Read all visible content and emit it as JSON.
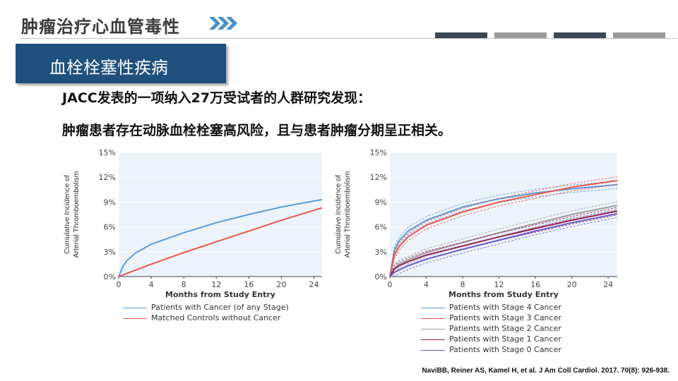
{
  "header": {
    "title": "肿瘤治疗心血管毒性",
    "bar_colors": [
      "#3d4756",
      "#9a9a9a",
      "#3d4756",
      "#9a9a9a"
    ]
  },
  "section": {
    "title": "血栓栓塞性疾病"
  },
  "body": {
    "line1": "JACC发表的一项纳入27万受试者的人群研究发现：",
    "line2": "肿瘤患者存在动脉血栓栓塞高风险，且与患者肿瘤分期呈正相关。"
  },
  "chart_data": [
    {
      "type": "line",
      "xlabel": "Months from Study Entry",
      "ylabel_lines": [
        "Cumulative Incidence of",
        "Arterial Thromboembolism"
      ],
      "xticks": [
        "0",
        "4",
        "8",
        "12",
        "16",
        "20",
        "24"
      ],
      "yticks": [
        "0%",
        "3%",
        "6%",
        "9%",
        "12%",
        "15%"
      ],
      "xlim": [
        0,
        25
      ],
      "ylim": [
        0,
        15
      ],
      "series": [
        {
          "name": "Patients with Cancer (of any Stage)",
          "color": "#5b9bd5",
          "x": [
            0,
            0.5,
            1,
            2,
            4,
            8,
            12,
            16,
            20,
            25
          ],
          "y": [
            0,
            1.2,
            1.9,
            2.8,
            3.9,
            5.3,
            6.5,
            7.5,
            8.4,
            9.3
          ]
        },
        {
          "name": "Matched Controls without Cancer",
          "color": "#e8584a",
          "x": [
            0,
            4,
            8,
            12,
            16,
            20,
            25
          ],
          "y": [
            0,
            1.5,
            2.9,
            4.2,
            5.5,
            6.8,
            8.3
          ]
        }
      ]
    },
    {
      "type": "line",
      "xlabel": "Months from Study Entry",
      "ylabel_lines": [
        "Cumulative Incidence of",
        "Arterial Thromboembolism"
      ],
      "xticks": [
        "0",
        "4",
        "8",
        "12",
        "16",
        "20",
        "24"
      ],
      "yticks": [
        "0%",
        "3%",
        "6%",
        "9%",
        "12%",
        "15%"
      ],
      "xlim": [
        0,
        25
      ],
      "ylim": [
        0,
        15
      ],
      "series": [
        {
          "name": "Patients with Stage 4 Cancer",
          "color": "#5b9bd5",
          "x": [
            0,
            0.5,
            1,
            2,
            4,
            8,
            12,
            16,
            20,
            25
          ],
          "y": [
            0,
            3.2,
            4.3,
            5.5,
            6.8,
            8.4,
            9.4,
            10.1,
            10.6,
            11.1
          ]
        },
        {
          "name": "Patients with Stage 3 Cancer",
          "color": "#e8584a",
          "x": [
            0,
            0.5,
            1,
            2,
            4,
            8,
            12,
            16,
            20,
            25
          ],
          "y": [
            0,
            2.6,
            3.6,
            4.8,
            6.2,
            7.8,
            9.0,
            9.9,
            10.8,
            11.6
          ]
        },
        {
          "name": "Patients with Stage 2 Cancer",
          "color": "#9e9e9e",
          "x": [
            0,
            0.5,
            1,
            2,
            4,
            8,
            12,
            16,
            20,
            25
          ],
          "y": [
            0,
            1.0,
            1.5,
            2.0,
            2.9,
            4.1,
            5.3,
            6.4,
            7.5,
            8.6
          ]
        },
        {
          "name": "Patients with Stage 1 Cancer",
          "color": "#9b1b45",
          "x": [
            0,
            0.5,
            1,
            2,
            4,
            8,
            12,
            16,
            20,
            25
          ],
          "y": [
            0,
            0.9,
            1.3,
            1.8,
            2.6,
            3.7,
            4.8,
            5.8,
            6.8,
            7.9
          ]
        },
        {
          "name": "Patients with Stage 0 Cancer",
          "color": "#6a5acd",
          "x": [
            0,
            0.5,
            1,
            2,
            4,
            8,
            12,
            16,
            20,
            25
          ],
          "y": [
            0,
            0.5,
            0.8,
            1.3,
            2.1,
            3.3,
            4.4,
            5.5,
            6.5,
            7.6
          ]
        }
      ]
    }
  ],
  "citation": "NaviBB, Reiner AS, Kamel H, et al. J Am Coll Cardiol. 2017. 70(8): 926-938."
}
